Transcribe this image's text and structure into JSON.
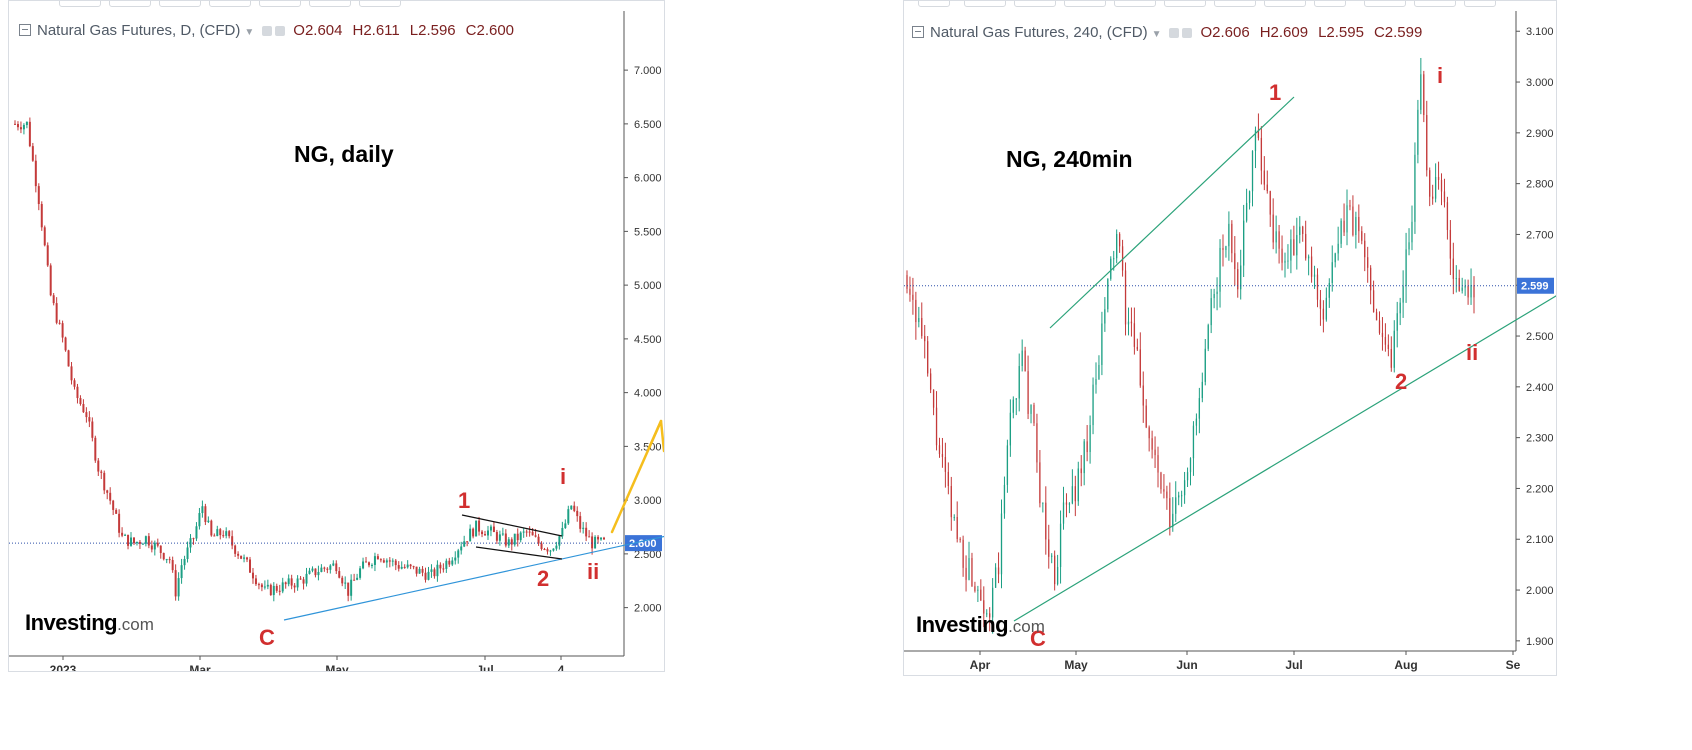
{
  "colors": {
    "candle_up": "#1c9f84",
    "candle_down": "#c43a3a",
    "trendline_daily": "#2f94d9",
    "trendline_240": "#2aa279",
    "arrow": "#f5be1d",
    "wave_label": "#d12f2f",
    "price_tag_bg": "#3b73d8",
    "hline": "#2c4fa8"
  },
  "panels": [
    {
      "legend": {
        "name": "Natural Gas Futures, D, (CFD)",
        "o": "O2.604",
        "h": "H2.611",
        "l": "L2.596",
        "c": "C2.600"
      },
      "title": "NG, daily",
      "price_tag": "2.600",
      "logo": {
        "word": "Investing",
        "dot": ".com"
      },
      "wave_labels": {
        "one": "1",
        "two": "2",
        "i": "i",
        "ii": "ii",
        "c": "C"
      },
      "chart_data": {
        "type": "candlestick",
        "title": "NG, daily",
        "x_ticks": [
          "2023",
          "Mar",
          "May",
          "Jul",
          "4"
        ],
        "y_ticks": [
          "2.000",
          "2.500",
          "3.000",
          "3.500",
          "4.000",
          "4.500",
          "5.000",
          "5.500",
          "6.000",
          "6.500",
          "7.000"
        ],
        "ylim": [
          1.55,
          7.55
        ],
        "last_close": 2.6,
        "trend_points": [
          [
            0,
            6.5
          ],
          [
            4,
            6.5
          ],
          [
            8,
            5.8
          ],
          [
            12,
            4.9
          ],
          [
            16,
            4.5
          ],
          [
            20,
            4.0
          ],
          [
            24,
            3.8
          ],
          [
            28,
            3.3
          ],
          [
            32,
            3.0
          ],
          [
            36,
            2.65
          ],
          [
            40,
            2.6
          ],
          [
            44,
            2.65
          ],
          [
            48,
            2.55
          ],
          [
            52,
            2.45
          ],
          [
            54,
            2.15
          ],
          [
            56,
            2.4
          ],
          [
            60,
            2.65
          ],
          [
            63,
            2.95
          ],
          [
            66,
            2.65
          ],
          [
            70,
            2.7
          ],
          [
            74,
            2.55
          ],
          [
            78,
            2.4
          ],
          [
            84,
            2.15
          ],
          [
            90,
            2.2
          ],
          [
            96,
            2.25
          ],
          [
            102,
            2.35
          ],
          [
            108,
            2.4
          ],
          [
            112,
            2.15
          ],
          [
            116,
            2.35
          ],
          [
            122,
            2.5
          ],
          [
            128,
            2.4
          ],
          [
            134,
            2.35
          ],
          [
            140,
            2.3
          ],
          [
            146,
            2.45
          ],
          [
            150,
            2.6
          ],
          [
            155,
            2.75
          ],
          [
            160,
            2.7
          ],
          [
            166,
            2.6
          ],
          [
            172,
            2.7
          ],
          [
            176,
            2.6
          ],
          [
            180,
            2.55
          ],
          [
            184,
            2.7
          ],
          [
            187,
            2.95
          ],
          [
            190,
            2.75
          ],
          [
            194,
            2.6
          ],
          [
            198,
            2.6
          ]
        ]
      }
    },
    {
      "legend": {
        "name": "Natural Gas Futures, 240, (CFD)",
        "o": "O2.606",
        "h": "H2.609",
        "l": "L2.595",
        "c": "C2.599"
      },
      "title": "NG, 240min",
      "price_tag": "2.599",
      "logo": {
        "word": "Investing",
        "dot": ".com"
      },
      "wave_labels": {
        "one": "1",
        "two": "2",
        "i": "i",
        "ii": "ii",
        "c": "C"
      },
      "chart_data": {
        "type": "candlestick",
        "title": "NG, 240min",
        "x_ticks": [
          "Apr",
          "May",
          "Jun",
          "Jul",
          "Aug",
          "Se"
        ],
        "y_ticks": [
          "1.900",
          "2.000",
          "2.100",
          "2.200",
          "2.300",
          "2.400",
          "2.500",
          "2.600",
          "2.700",
          "2.800",
          "2.900",
          "3.000",
          "3.100"
        ],
        "ylim": [
          1.88,
          3.13
        ],
        "last_close": 2.599,
        "trend_points": [
          [
            0,
            2.62
          ],
          [
            5,
            2.5
          ],
          [
            10,
            2.3
          ],
          [
            15,
            2.15
          ],
          [
            20,
            2.05
          ],
          [
            25,
            2.0
          ],
          [
            28,
            1.95
          ],
          [
            31,
            2.05
          ],
          [
            35,
            2.35
          ],
          [
            39,
            2.45
          ],
          [
            43,
            2.3
          ],
          [
            47,
            2.1
          ],
          [
            50,
            2.03
          ],
          [
            53,
            2.15
          ],
          [
            57,
            2.2
          ],
          [
            61,
            2.3
          ],
          [
            65,
            2.45
          ],
          [
            68,
            2.6
          ],
          [
            71,
            2.7
          ],
          [
            74,
            2.55
          ],
          [
            78,
            2.45
          ],
          [
            82,
            2.3
          ],
          [
            86,
            2.2
          ],
          [
            89,
            2.13
          ],
          [
            93,
            2.2
          ],
          [
            97,
            2.3
          ],
          [
            100,
            2.4
          ],
          [
            103,
            2.55
          ],
          [
            106,
            2.65
          ],
          [
            109,
            2.7
          ],
          [
            112,
            2.62
          ],
          [
            115,
            2.75
          ],
          [
            118,
            2.93
          ],
          [
            121,
            2.8
          ],
          [
            125,
            2.68
          ],
          [
            129,
            2.65
          ],
          [
            133,
            2.7
          ],
          [
            137,
            2.62
          ],
          [
            141,
            2.55
          ],
          [
            145,
            2.65
          ],
          [
            149,
            2.75
          ],
          [
            153,
            2.7
          ],
          [
            157,
            2.6
          ],
          [
            161,
            2.5
          ],
          [
            164,
            2.46
          ],
          [
            168,
            2.62
          ],
          [
            171,
            2.75
          ],
          [
            174,
            3.0
          ],
          [
            177,
            2.78
          ],
          [
            180,
            2.82
          ],
          [
            183,
            2.7
          ],
          [
            186,
            2.6
          ],
          [
            189,
            2.58
          ],
          [
            192,
            2.6
          ]
        ]
      }
    }
  ]
}
